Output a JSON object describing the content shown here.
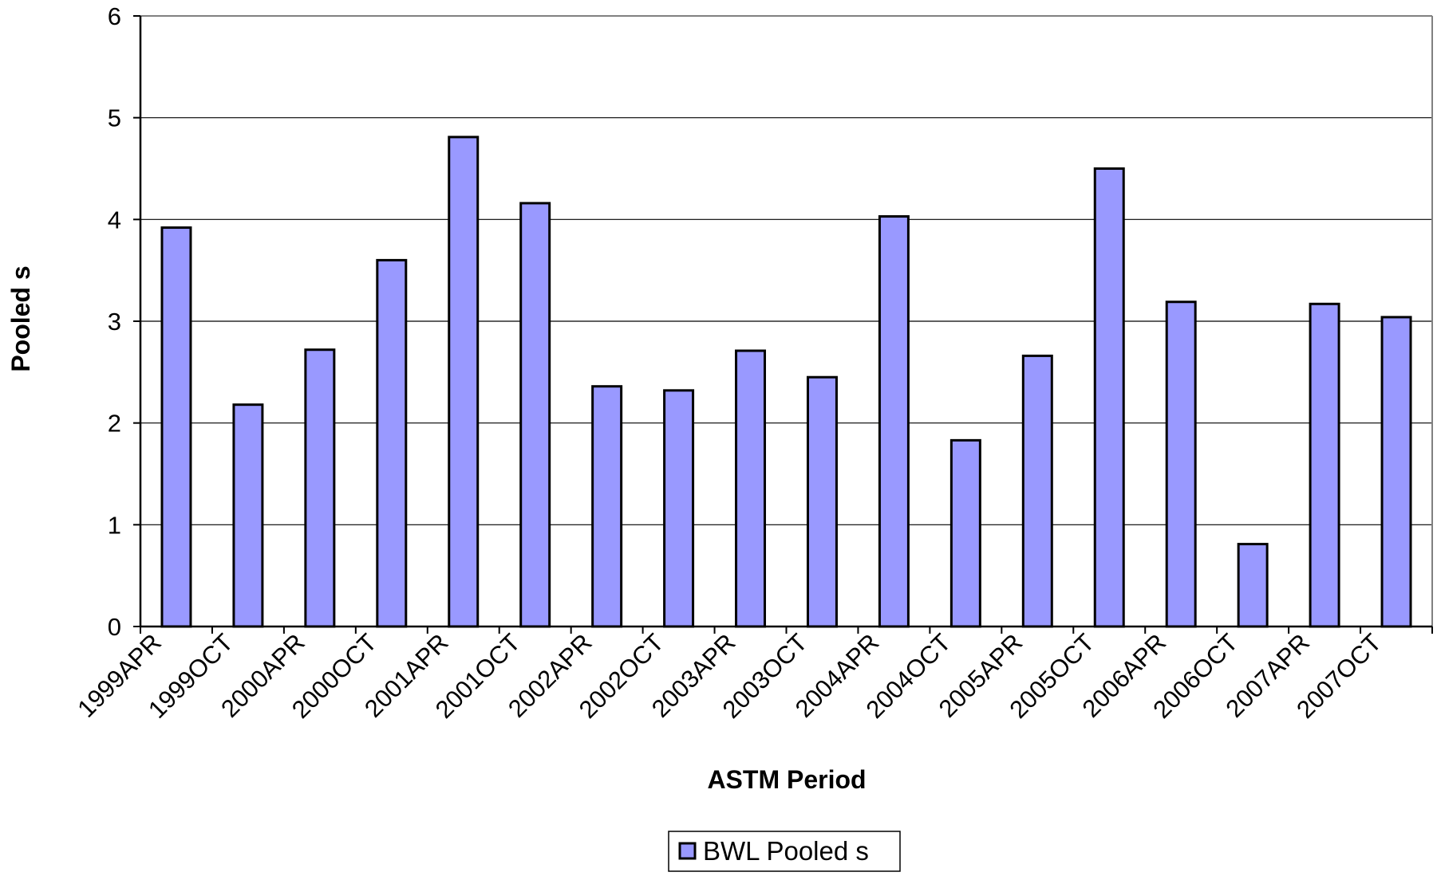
{
  "chart_data": {
    "type": "bar",
    "title": "",
    "xlabel": "ASTM Period",
    "ylabel": "Pooled s",
    "ylim": [
      0,
      6
    ],
    "yticks": [
      "0",
      "1",
      "2",
      "3",
      "4",
      "5",
      "6"
    ],
    "grid": true,
    "legend_position": "bottom-center",
    "categories": [
      "1999APR",
      "1999OCT",
      "2000APR",
      "2000OCT",
      "2001APR",
      "2001OCT",
      "2002APR",
      "2002OCT",
      "2003APR",
      "2003OCT",
      "2004APR",
      "2004OCT",
      "2005APR",
      "2005OCT",
      "2006APR",
      "2006OCT",
      "2007APR",
      "2007OCT"
    ],
    "series": [
      {
        "name": "BWL Pooled s",
        "color": "#9999ff",
        "values": [
          3.92,
          2.18,
          2.72,
          3.6,
          4.81,
          4.16,
          2.36,
          2.32,
          2.71,
          2.45,
          4.03,
          1.83,
          2.66,
          4.5,
          3.19,
          0.81,
          3.17,
          3.04
        ]
      }
    ]
  }
}
